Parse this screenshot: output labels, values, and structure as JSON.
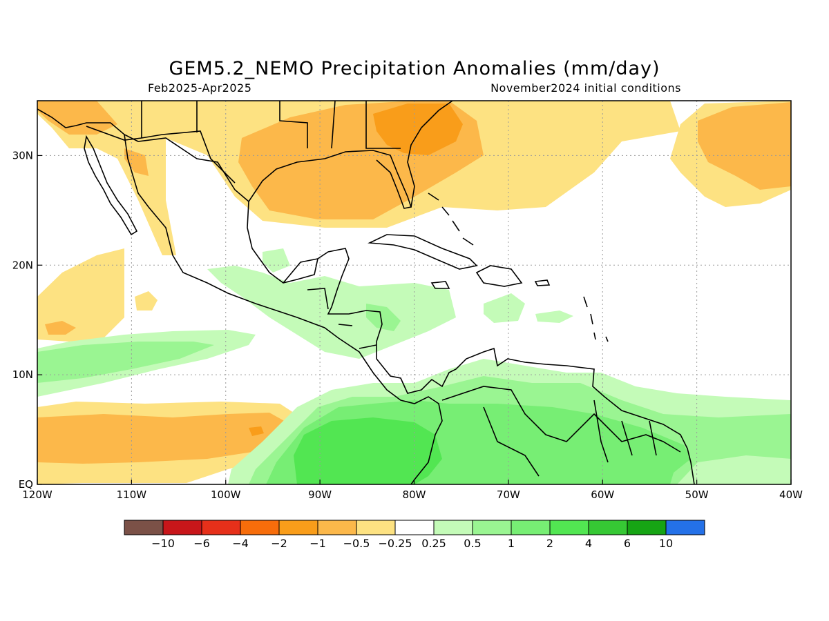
{
  "title": "GEM5.2_NEMO Precipitation Anomalies (mm/day)",
  "subtitle_left": "Feb2025-Apr2025",
  "subtitle_right": "November2024 initial conditions",
  "map": {
    "lon_range": [
      -120,
      -40
    ],
    "lat_range": [
      0,
      35
    ],
    "grid": true,
    "x_ticks": [
      {
        "lon": -120,
        "label": "120W"
      },
      {
        "lon": -110,
        "label": "110W"
      },
      {
        "lon": -100,
        "label": "100W"
      },
      {
        "lon": -90,
        "label": "90W"
      },
      {
        "lon": -80,
        "label": "80W"
      },
      {
        "lon": -70,
        "label": "70W"
      },
      {
        "lon": -60,
        "label": "60W"
      },
      {
        "lon": -50,
        "label": "50W"
      },
      {
        "lon": -40,
        "label": "40W"
      }
    ],
    "y_ticks": [
      {
        "lat": 0,
        "label": "EQ"
      },
      {
        "lat": 10,
        "label": "10N"
      },
      {
        "lat": 20,
        "label": "20N"
      },
      {
        "lat": 30,
        "label": "30N"
      }
    ]
  },
  "colorbar": {
    "colors": [
      "#7b5147",
      "#c8161a",
      "#e6301a",
      "#f76d0b",
      "#f99d1a",
      "#fcb84a",
      "#fde282",
      "#ffffff",
      "#c4fbb8",
      "#9af592",
      "#77ee74",
      "#52e652",
      "#36c834",
      "#16a414",
      "#2471e8"
    ],
    "labels": [
      "-10",
      "-6",
      "-4",
      "-2",
      "-1",
      "-0.5",
      "-0.25",
      "0.25",
      "0.5",
      "1",
      "2",
      "4",
      "6",
      "10"
    ]
  }
}
